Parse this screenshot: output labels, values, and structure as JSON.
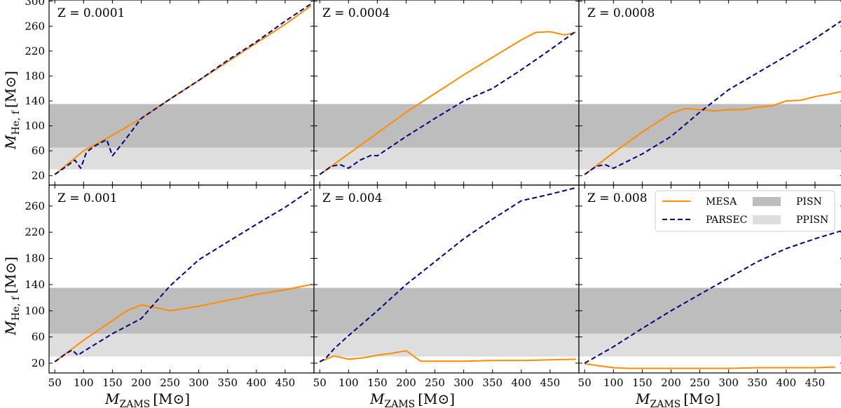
{
  "chart_data": {
    "type": "line",
    "xlabel": "M_ZAMS [M⊙]",
    "ylabel": "M_He,f [M⊙]",
    "xlabel_main": "M",
    "xlabel_sub": "ZAMS",
    "xlabel_unit": "[M⊙]",
    "ylabel_main": "M",
    "ylabel_sub": "He, f",
    "ylabel_unit": "[M⊙]",
    "xlim": [
      40,
      500
    ],
    "x_ticks": [
      50,
      100,
      150,
      200,
      250,
      300,
      350,
      400,
      450
    ],
    "bands": [
      {
        "name": "PISN",
        "range": [
          65,
          135
        ],
        "color": "#bdbdbd"
      },
      {
        "name": "PPISN",
        "range": [
          30,
          65
        ],
        "color": "#dedede"
      }
    ],
    "legend": [
      {
        "label": "MESA",
        "kind": "line",
        "color": "#ff8c00"
      },
      {
        "label": "PARSEC",
        "kind": "dashed",
        "color": "#00007f"
      },
      {
        "label": "PISN",
        "kind": "patch",
        "color": "#bdbdbd"
      },
      {
        "label": "PPISN",
        "kind": "patch",
        "color": "#dedede"
      }
    ],
    "panels": [
      {
        "label": "Z = 0.0001",
        "row": 0,
        "col": 0,
        "ylim": [
          5,
          302
        ],
        "y_ticks": [
          20,
          60,
          100,
          140,
          180,
          220,
          260,
          300
        ],
        "series": [
          {
            "name": "MESA",
            "x": [
              50,
              100,
              150,
              200,
              250,
              300,
              350,
              400,
              450,
              495
            ],
            "y": [
              22,
              60,
              85,
              112,
              143,
              173,
              203,
              233,
              263,
              293
            ]
          },
          {
            "name": "PARSEC",
            "x": [
              50,
              70,
              85,
              95,
              105,
              120,
              140,
              150,
              170,
              200,
              250,
              300,
              350,
              400,
              450,
              495
            ],
            "y": [
              22,
              35,
              45,
              32,
              58,
              68,
              78,
              52,
              75,
              112,
              143,
              173,
              205,
              235,
              268,
              296
            ]
          }
        ]
      },
      {
        "label": "Z = 0.0004",
        "row": 0,
        "col": 1,
        "ylim": [
          5,
          302
        ],
        "y_ticks": [],
        "series": [
          {
            "name": "MESA",
            "x": [
              50,
              100,
              200,
              300,
              400,
              425,
              450,
              475,
              495
            ],
            "y": [
              22,
              55,
              122,
              182,
              238,
              250,
              251,
              246,
              250
            ]
          },
          {
            "name": "PARSEC",
            "x": [
              50,
              70,
              85,
              100,
              120,
              140,
              150,
              200,
              250,
              300,
              350,
              400,
              450,
              495
            ],
            "y": [
              22,
              35,
              38,
              32,
              45,
              53,
              52,
              83,
              112,
              140,
              160,
              190,
              222,
              252
            ]
          }
        ]
      },
      {
        "label": "Z = 0.0008",
        "row": 0,
        "col": 2,
        "ylim": [
          5,
          302
        ],
        "y_ticks": [],
        "series": [
          {
            "name": "MESA",
            "x": [
              50,
              100,
              150,
              200,
              225,
              250,
              275,
              300,
              325,
              350,
              375,
              400,
              425,
              450,
              475,
              495
            ],
            "y": [
              22,
              57,
              90,
              120,
              128,
              126,
              124,
              126,
              126,
              130,
              132,
              140,
              141,
              147,
              151,
              155
            ]
          },
          {
            "name": "PARSEC",
            "x": [
              50,
              70,
              85,
              100,
              150,
              200,
              250,
              300,
              350,
              400,
              450,
              495
            ],
            "y": [
              22,
              35,
              38,
              32,
              55,
              83,
              122,
              158,
              185,
              212,
              240,
              268
            ]
          }
        ]
      },
      {
        "label": "Z = 0.001",
        "row": 1,
        "col": 0,
        "ylim": [
          5,
          292
        ],
        "y_ticks": [
          20,
          60,
          100,
          140,
          180,
          220,
          260
        ],
        "series": [
          {
            "name": "MESA",
            "x": [
              50,
              100,
              150,
              175,
              200,
              225,
              250,
              300,
              350,
              375,
              400,
              450,
              495
            ],
            "y": [
              22,
              55,
              85,
              100,
              109,
              105,
              100,
              107,
              116,
              120,
              125,
              132,
              140
            ]
          },
          {
            "name": "PARSEC",
            "x": [
              50,
              70,
              80,
              90,
              100,
              150,
              200,
              250,
              300,
              350,
              400,
              450,
              495
            ],
            "y": [
              22,
              35,
              40,
              32,
              38,
              65,
              88,
              138,
              178,
              205,
              232,
              258,
              285
            ]
          }
        ]
      },
      {
        "label": "Z = 0.004",
        "row": 1,
        "col": 1,
        "ylim": [
          5,
          292
        ],
        "y_ticks": [],
        "series": [
          {
            "name": "MESA",
            "x": [
              50,
              75,
              100,
              125,
              150,
              175,
              200,
              225,
              250,
              300,
              350,
              400,
              450,
              495
            ],
            "y": [
              22,
              31,
              26,
              28,
              32,
              35,
              39,
              23,
              23,
              23,
              24,
              24,
              25,
              26
            ]
          },
          {
            "name": "PARSEC",
            "x": [
              50,
              60,
              75,
              100,
              150,
              200,
              250,
              300,
              350,
              400,
              450,
              495
            ],
            "y": [
              22,
              27,
              42,
              62,
              100,
              140,
              175,
              210,
              240,
              268,
              278,
              288
            ]
          }
        ]
      },
      {
        "label": "Z = 0.008",
        "row": 1,
        "col": 2,
        "ylim": [
          5,
          292
        ],
        "y_ticks": [],
        "series": [
          {
            "name": "MESA",
            "x": [
              50,
              75,
              100,
              125,
              150,
              200,
              250,
              300,
              350,
              400,
              450,
              485
            ],
            "y": [
              19,
              16,
              13,
              12,
              12,
              12,
              12,
              12,
              13,
              13,
              13,
              14
            ]
          },
          {
            "name": "PARSEC",
            "x": [
              50,
              70,
              100,
              150,
              200,
              250,
              300,
              350,
              400,
              450,
              495
            ],
            "y": [
              20,
              30,
              45,
              73,
              100,
              125,
              150,
              175,
              195,
              210,
              222
            ]
          }
        ]
      }
    ]
  }
}
